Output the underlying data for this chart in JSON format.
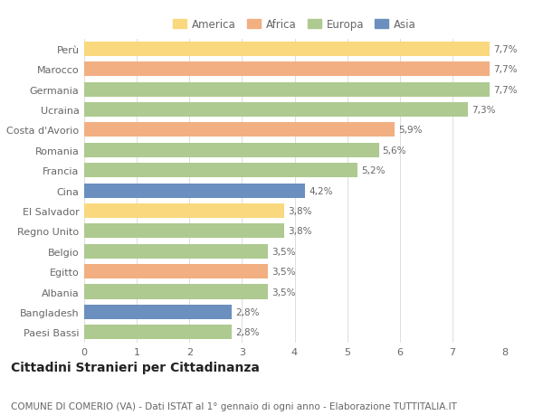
{
  "countries": [
    "Perù",
    "Marocco",
    "Germania",
    "Ucraina",
    "Costa d'Avorio",
    "Romania",
    "Francia",
    "Cina",
    "El Salvador",
    "Regno Unito",
    "Belgio",
    "Egitto",
    "Albania",
    "Bangladesh",
    "Paesi Bassi"
  ],
  "values": [
    7.7,
    7.7,
    7.7,
    7.3,
    5.9,
    5.6,
    5.2,
    4.2,
    3.8,
    3.8,
    3.5,
    3.5,
    3.5,
    2.8,
    2.8
  ],
  "labels": [
    "7,7%",
    "7,7%",
    "7,7%",
    "7,3%",
    "5,9%",
    "5,6%",
    "5,2%",
    "4,2%",
    "3,8%",
    "3,8%",
    "3,5%",
    "3,5%",
    "3,5%",
    "2,8%",
    "2,8%"
  ],
  "continents": [
    "America",
    "Africa",
    "Europa",
    "Europa",
    "Africa",
    "Europa",
    "Europa",
    "Asia",
    "America",
    "Europa",
    "Europa",
    "Africa",
    "Europa",
    "Asia",
    "Europa"
  ],
  "colors": {
    "America": "#F9D87E",
    "Africa": "#F2AF82",
    "Europa": "#AECA90",
    "Asia": "#6B8FBF"
  },
  "legend_order": [
    "America",
    "Africa",
    "Europa",
    "Asia"
  ],
  "title": "Cittadini Stranieri per Cittadinanza",
  "subtitle": "COMUNE DI COMERIO (VA) - Dati ISTAT al 1° gennaio di ogni anno - Elaborazione TUTTITALIA.IT",
  "xlim": [
    0,
    8
  ],
  "xticks": [
    0,
    1,
    2,
    3,
    4,
    5,
    6,
    7,
    8
  ],
  "background_color": "#ffffff",
  "grid_color": "#dddddd",
  "title_fontsize": 10,
  "subtitle_fontsize": 7.5,
  "bar_height": 0.72,
  "label_fontsize": 7.5,
  "tick_fontsize": 8,
  "legend_fontsize": 8.5
}
